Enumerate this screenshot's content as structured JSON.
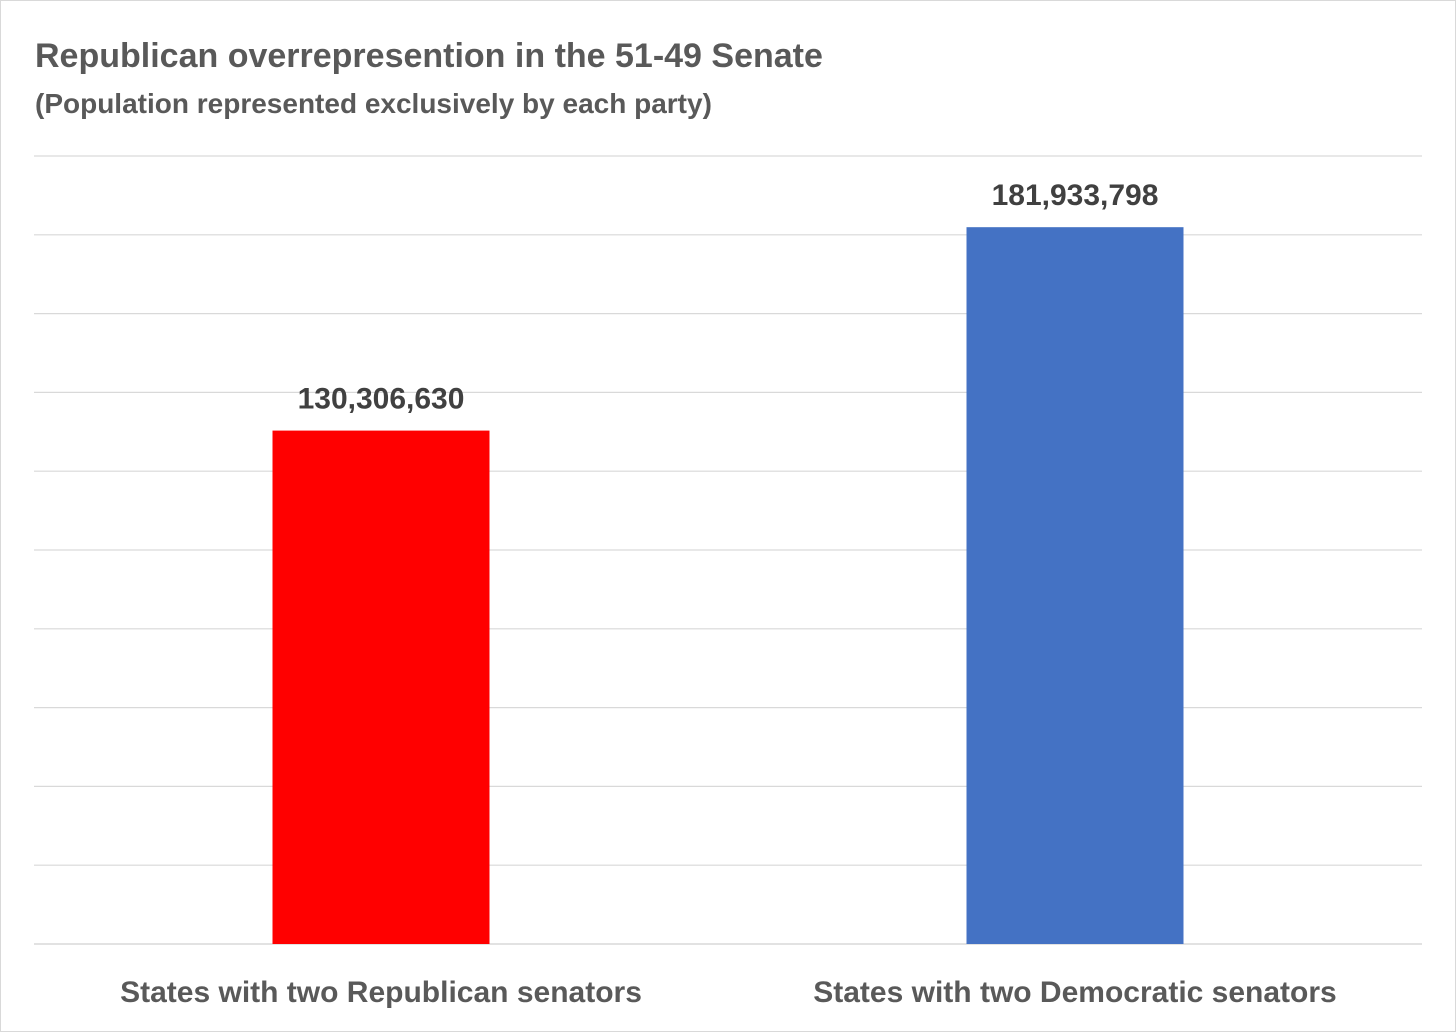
{
  "chart_data": {
    "type": "bar",
    "title": "Republican overrepresention in the 51-49 Senate",
    "subtitle": "(Population represented exclusively by each party)",
    "categories": [
      "States with two Republican senators",
      "States with two Democratic senators"
    ],
    "values": [
      130306630,
      181933798
    ],
    "value_labels": [
      "130,306,630",
      "181,933,798"
    ],
    "colors": [
      "#ff0000",
      "#4472c4"
    ],
    "gridline_color": "#d9d9d9",
    "ylim": [
      0,
      200000000
    ],
    "y_gridline_step": 20000000,
    "y_tick_labels_shown": false,
    "grid": true,
    "legend": "none"
  }
}
